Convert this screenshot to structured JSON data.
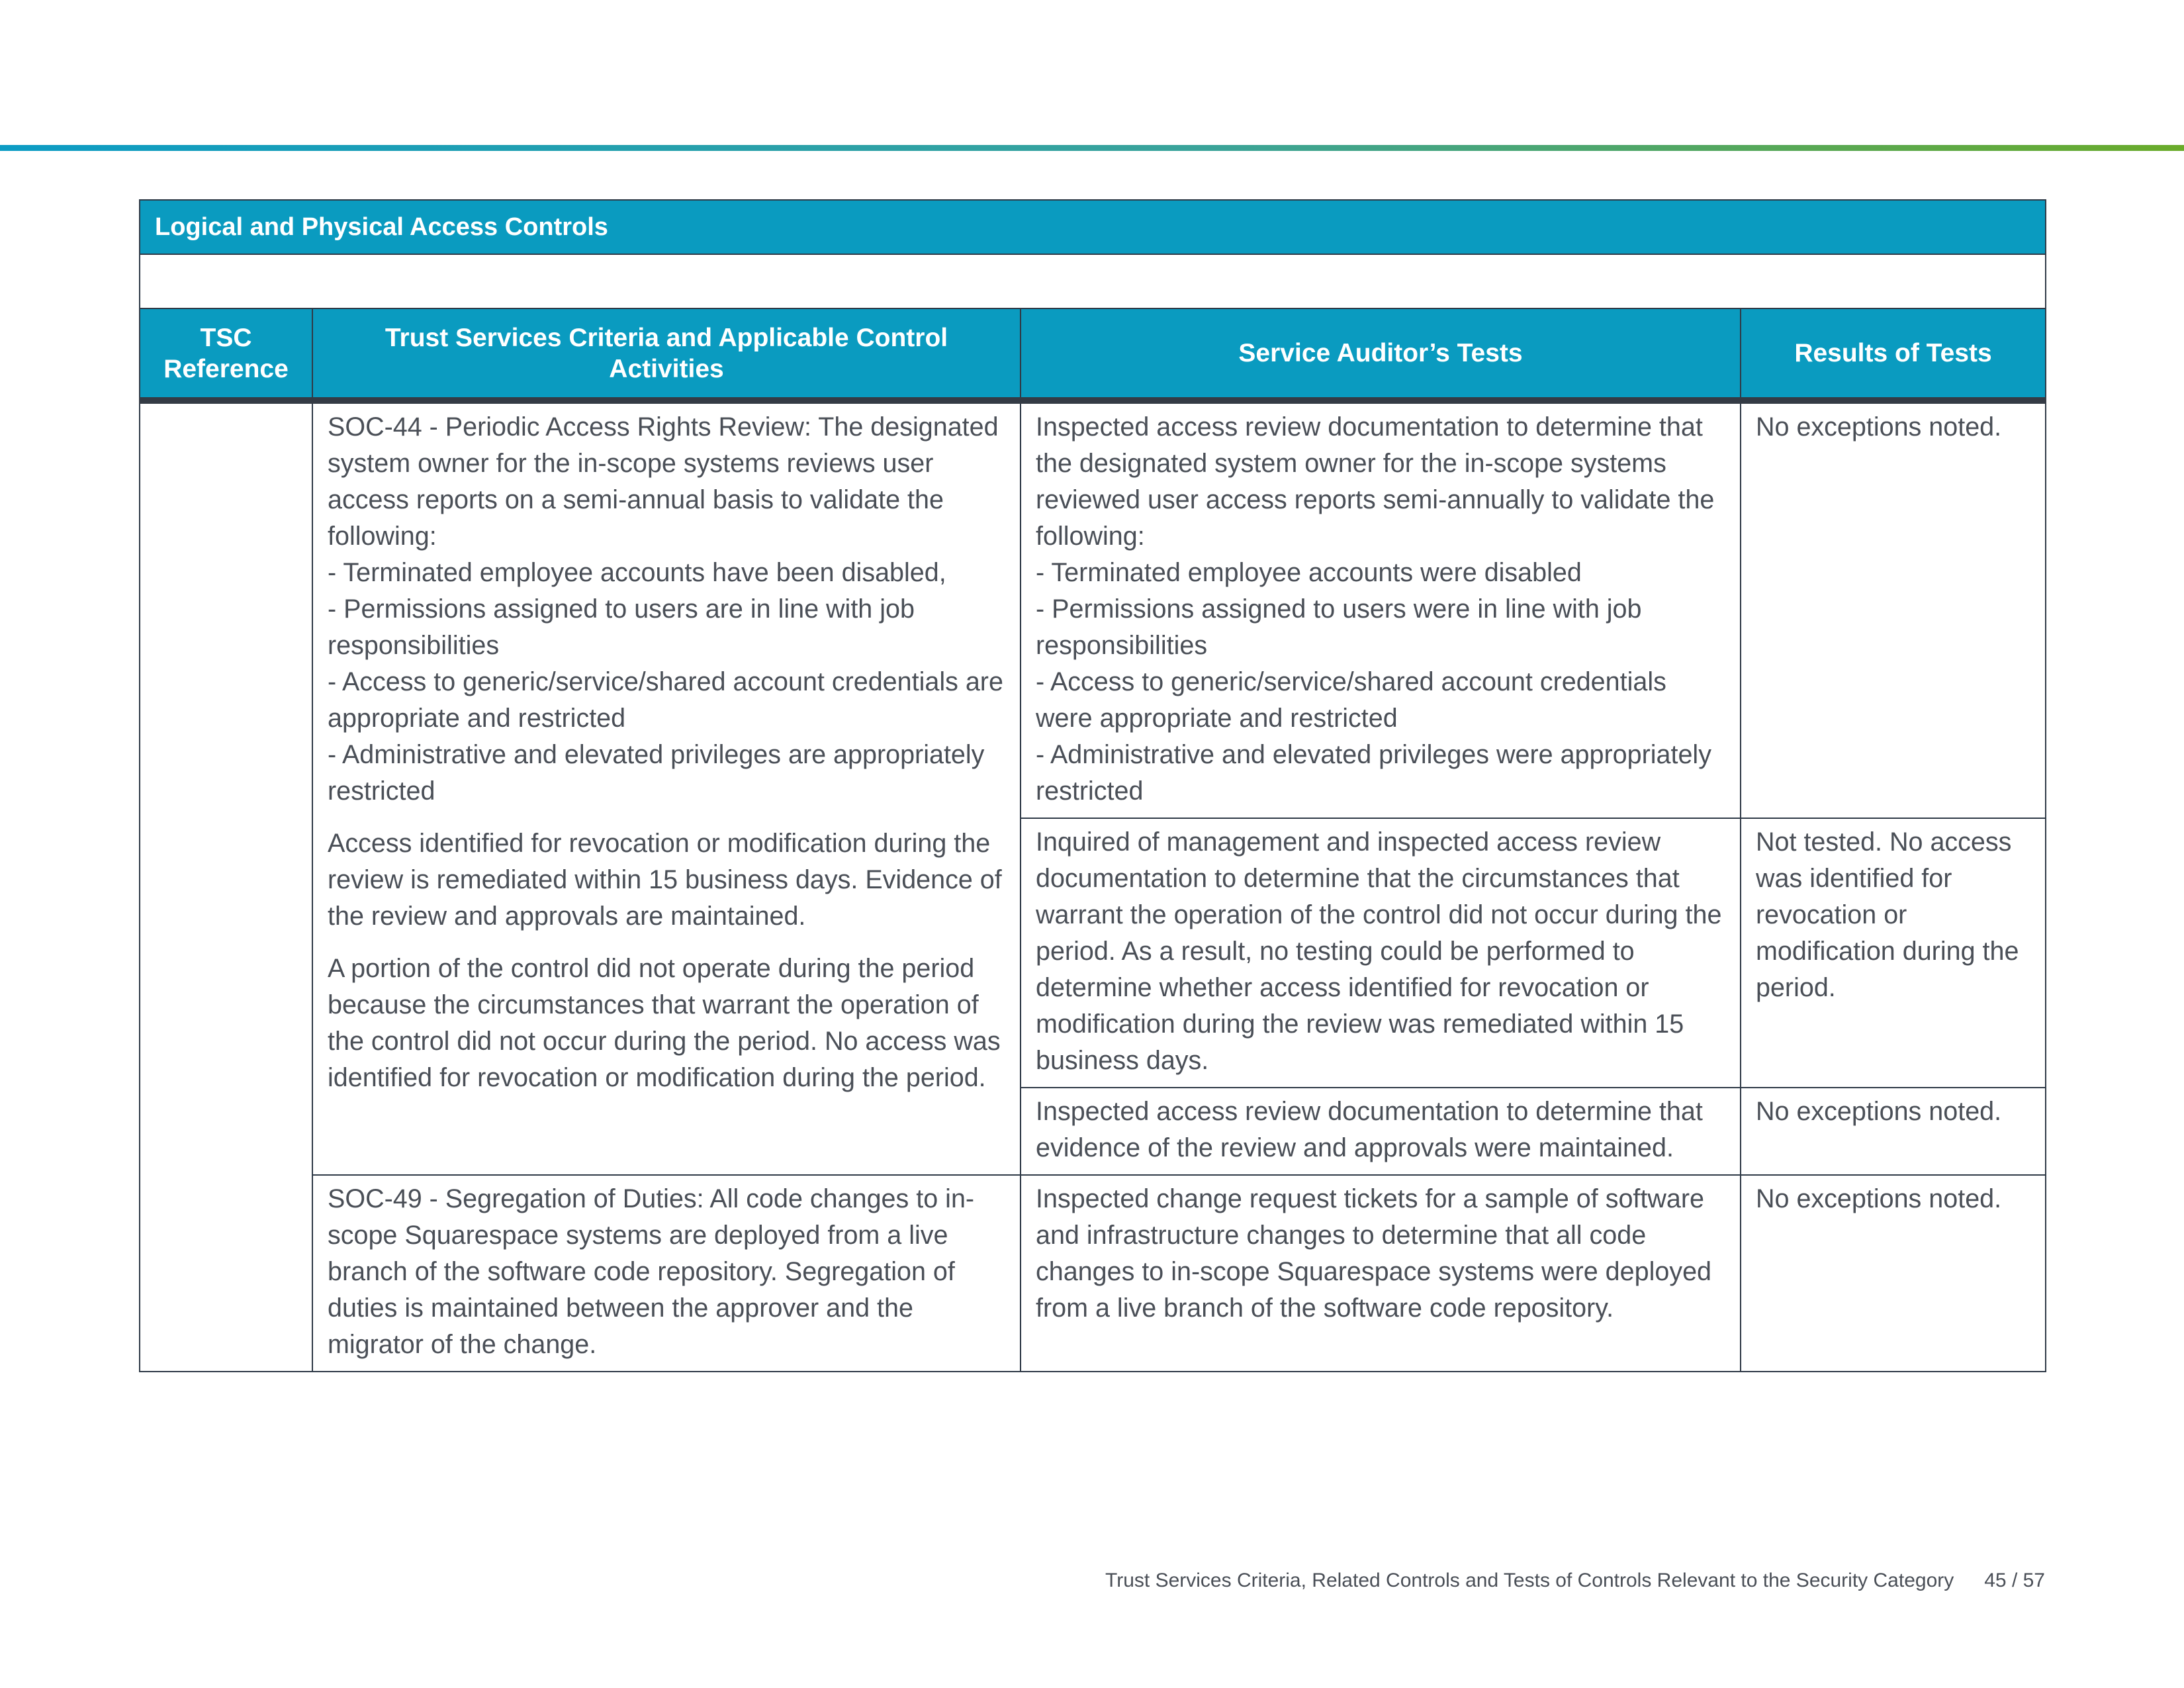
{
  "table": {
    "title": "Logical and Physical Access Controls",
    "headers": [
      "TSC Reference",
      "Trust Services Criteria and Applicable Control Activities",
      "Service Auditor’s Tests",
      "Results of Tests"
    ],
    "rows": [
      {
        "control": [
          [
            "SOC-44 - Periodic Access Rights Review: The designated system owner for the in-scope systems reviews user access reports on a semi-annual basis to validate the following:",
            "- Terminated employee accounts have been disabled,",
            "- Permissions assigned to users are in line with job responsibilities",
            "- Access to generic/service/shared account credentials are appropriate and restricted",
            "- Administrative and elevated privileges are appropriately restricted"
          ],
          [
            "Access identified for revocation or modification during the review is remediated within 15 business days. Evidence of the review and approvals are maintained."
          ],
          [
            "A portion of the control did not operate during the period because the circumstances that warrant the operation of the control did not occur during the period. No access was identified for revocation or modification during the period."
          ]
        ],
        "tests": [
          {
            "test": [
              "Inspected access review documentation to determine that the designated system owner for the in-scope systems reviewed user access reports semi-annually to validate the following:",
              "- Terminated employee accounts were disabled",
              "- Permissions assigned to users were in line with job responsibilities",
              "- Access to generic/service/shared account credentials were appropriate and restricted",
              "- Administrative and elevated privileges were appropriately restricted"
            ],
            "result": "No exceptions noted."
          },
          {
            "test": [
              "Inquired of management and inspected access review documentation to determine that the circumstances that warrant the operation of the control did not occur during the period. As a result, no testing could be performed to determine whether access identified for revocation or modification during the review was remediated within 15 business days."
            ],
            "result": "Not tested. No access was identified for revocation or modification during the period."
          },
          {
            "test": [
              "Inspected access review documentation to determine that evidence of the review and approvals were maintained."
            ],
            "result": "No exceptions noted."
          }
        ]
      },
      {
        "control": [
          [
            "SOC-49 - Segregation of Duties: All code changes to in-scope Squarespace systems are deployed from a live branch of the software code repository. Segregation of duties is maintained between the approver and the migrator of the change."
          ]
        ],
        "tests": [
          {
            "test": [
              "Inspected change request tickets for a sample of software and infrastructure changes to determine that all code changes to in-scope Squarespace systems were deployed from a live branch of the software code repository."
            ],
            "result": "No exceptions noted."
          }
        ]
      }
    ]
  },
  "footer": {
    "text": "Trust Services Criteria, Related Controls and Tests of Controls Relevant to the Security Category",
    "page": "45 / 57"
  }
}
